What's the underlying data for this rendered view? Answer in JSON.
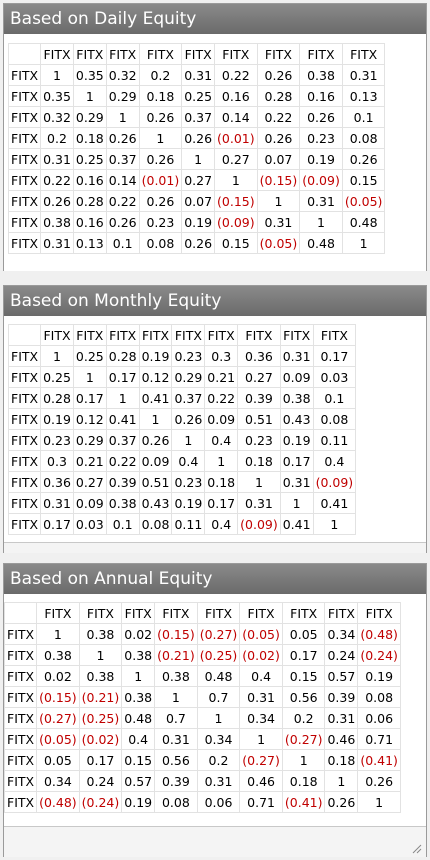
{
  "panels": [
    {
      "title": "Based on Daily Equity",
      "label": "FITX",
      "matrix": [
        [
          "1",
          "0.35",
          "0.32",
          "0.2",
          "0.31",
          "0.22",
          "0.26",
          "0.38",
          "0.31"
        ],
        [
          "0.35",
          "1",
          "0.29",
          "0.18",
          "0.25",
          "0.16",
          "0.28",
          "0.16",
          "0.13"
        ],
        [
          "0.32",
          "0.29",
          "1",
          "0.26",
          "0.37",
          "0.14",
          "0.22",
          "0.26",
          "0.1"
        ],
        [
          "0.2",
          "0.18",
          "0.26",
          "1",
          "0.26",
          "(0.01)",
          "0.26",
          "0.23",
          "0.08"
        ],
        [
          "0.31",
          "0.25",
          "0.37",
          "0.26",
          "1",
          "0.27",
          "0.07",
          "0.19",
          "0.26"
        ],
        [
          "0.22",
          "0.16",
          "0.14",
          "(0.01)",
          "0.27",
          "1",
          "(0.15)",
          "(0.09)",
          "0.15"
        ],
        [
          "0.26",
          "0.28",
          "0.22",
          "0.26",
          "0.07",
          "(0.15)",
          "1",
          "0.31",
          "(0.05)"
        ],
        [
          "0.38",
          "0.16",
          "0.26",
          "0.23",
          "0.19",
          "(0.09)",
          "0.31",
          "1",
          "0.48"
        ],
        [
          "0.31",
          "0.13",
          "0.1",
          "0.08",
          "0.26",
          "0.15",
          "(0.05)",
          "0.48",
          "1"
        ]
      ]
    },
    {
      "title": "Based on Monthly Equity",
      "label": "FITX",
      "matrix": [
        [
          "1",
          "0.25",
          "0.28",
          "0.19",
          "0.23",
          "0.3",
          "0.36",
          "0.31",
          "0.17"
        ],
        [
          "0.25",
          "1",
          "0.17",
          "0.12",
          "0.29",
          "0.21",
          "0.27",
          "0.09",
          "0.03"
        ],
        [
          "0.28",
          "0.17",
          "1",
          "0.41",
          "0.37",
          "0.22",
          "0.39",
          "0.38",
          "0.1"
        ],
        [
          "0.19",
          "0.12",
          "0.41",
          "1",
          "0.26",
          "0.09",
          "0.51",
          "0.43",
          "0.08"
        ],
        [
          "0.23",
          "0.29",
          "0.37",
          "0.26",
          "1",
          "0.4",
          "0.23",
          "0.19",
          "0.11"
        ],
        [
          "0.3",
          "0.21",
          "0.22",
          "0.09",
          "0.4",
          "1",
          "0.18",
          "0.17",
          "0.4"
        ],
        [
          "0.36",
          "0.27",
          "0.39",
          "0.51",
          "0.23",
          "0.18",
          "1",
          "0.31",
          "(0.09)"
        ],
        [
          "0.31",
          "0.09",
          "0.38",
          "0.43",
          "0.19",
          "0.17",
          "0.31",
          "1",
          "0.41"
        ],
        [
          "0.17",
          "0.03",
          "0.1",
          "0.08",
          "0.11",
          "0.4",
          "(0.09)",
          "0.41",
          "1"
        ]
      ]
    },
    {
      "title": "Based on Annual Equity",
      "label": "FITX",
      "matrix": [
        [
          "1",
          "0.38",
          "0.02",
          "(0.15)",
          "(0.27)",
          "(0.05)",
          "0.05",
          "0.34",
          "(0.48)"
        ],
        [
          "0.38",
          "1",
          "0.38",
          "(0.21)",
          "(0.25)",
          "(0.02)",
          "0.17",
          "0.24",
          "(0.24)"
        ],
        [
          "0.02",
          "0.38",
          "1",
          "0.38",
          "0.48",
          "0.4",
          "0.15",
          "0.57",
          "0.19"
        ],
        [
          "(0.15)",
          "(0.21)",
          "0.38",
          "1",
          "0.7",
          "0.31",
          "0.56",
          "0.39",
          "0.08"
        ],
        [
          "(0.27)",
          "(0.25)",
          "0.48",
          "0.7",
          "1",
          "0.34",
          "0.2",
          "0.31",
          "0.06"
        ],
        [
          "(0.05)",
          "(0.02)",
          "0.4",
          "0.31",
          "0.34",
          "1",
          "(0.27)",
          "0.46",
          "0.71"
        ],
        [
          "0.05",
          "0.17",
          "0.15",
          "0.56",
          "0.2",
          "(0.27)",
          "1",
          "0.18",
          "(0.41)"
        ],
        [
          "0.34",
          "0.24",
          "0.57",
          "0.39",
          "0.31",
          "0.46",
          "0.18",
          "1",
          "0.26"
        ],
        [
          "(0.48)",
          "(0.24)",
          "0.19",
          "0.08",
          "0.06",
          "0.71",
          "(0.41)",
          "0.26",
          "1"
        ]
      ]
    }
  ],
  "colors": {
    "title_bar": "#7a7a7a",
    "negative": "#c00000"
  }
}
